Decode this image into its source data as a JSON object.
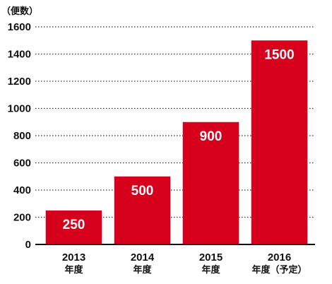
{
  "chart_data": {
    "type": "bar",
    "unit_label": "（便数）",
    "categories": [
      "2013",
      "2014",
      "2015",
      "2016"
    ],
    "category_sublabels": [
      "年度",
      "年度",
      "年度",
      "年度（予定）"
    ],
    "values": [
      250,
      500,
      900,
      1500
    ],
    "data_labels": [
      "250",
      "500",
      "900",
      "1500"
    ],
    "ylim": [
      0,
      1600
    ],
    "yticks": [
      0,
      200,
      400,
      600,
      800,
      1000,
      1200,
      1400,
      1600
    ],
    "ytick_labels": [
      "0",
      "200",
      "400",
      "600",
      "800",
      "1000",
      "1200",
      "1400",
      "1600"
    ],
    "grid": true,
    "bar_color": "#d6001c"
  }
}
